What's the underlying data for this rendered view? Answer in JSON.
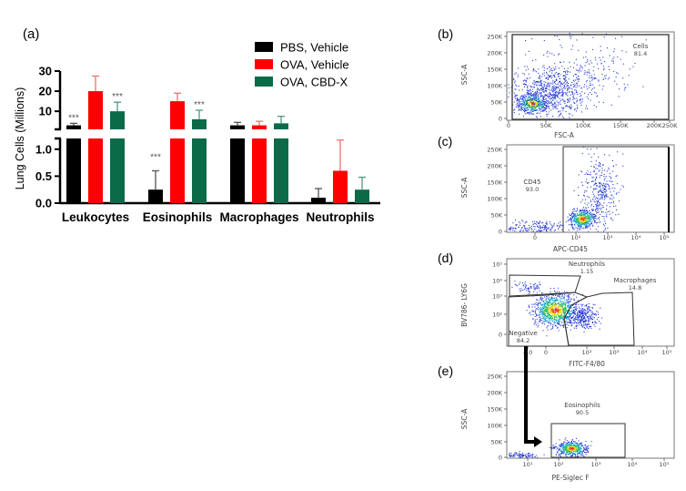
{
  "chart_data": [
    {
      "panel_label": "(a)",
      "type": "bar",
      "ylabel": "Lung Cells (Millions)",
      "y_axis_broken": true,
      "ylim_lower": [
        0,
        1.2
      ],
      "ylim_upper": [
        1,
        30
      ],
      "yticks_lower": [
        "0.0",
        "0.5",
        "1.0"
      ],
      "yticks_upper": [
        "10",
        "20",
        "30"
      ],
      "categories": [
        "Leukocytes",
        "Eosinophils",
        "Macrophages",
        "Neutrophils"
      ],
      "legend_position": "top-right",
      "series": [
        {
          "name": "PBS, Vehicle",
          "color": "#000000",
          "error_color": "#555555",
          "values": [
            3,
            0.25,
            3,
            0.1
          ],
          "error_upper": [
            4,
            0.6,
            4.5,
            0.27
          ],
          "significance": [
            "***",
            "***",
            "",
            ""
          ]
        },
        {
          "name": "OVA, Vehicle",
          "color": "#ff0000",
          "error_color": "#f07070",
          "values": [
            20,
            15,
            3,
            0.6
          ],
          "error_upper": [
            27.5,
            19,
            5,
            1.17
          ],
          "significance": [
            "",
            "",
            "",
            ""
          ]
        },
        {
          "name": "OVA, CBD-X",
          "color": "#0b6b48",
          "error_color": "#4f9a7e",
          "values": [
            10,
            6,
            4,
            0.25
          ],
          "error_upper": [
            14.5,
            10.5,
            7.5,
            0.48
          ],
          "significance": [
            "***",
            "***",
            "",
            ""
          ]
        }
      ]
    },
    {
      "panel_label": "(b)",
      "type": "scatter",
      "xlabel": "FSC-A",
      "ylabel": "SSC-A",
      "xticks": [
        "0",
        "50K",
        "100K",
        "150K",
        "200K",
        "250K"
      ],
      "yticks": [
        "250K",
        "200K",
        "150K",
        "100K",
        "50K",
        "0"
      ],
      "gates": [
        {
          "name": "Cells",
          "value": "81.4"
        }
      ]
    },
    {
      "panel_label": "(c)",
      "type": "scatter",
      "xlabel": "APC-CD45",
      "ylabel": "SSC-A",
      "xticks": [
        "0",
        "10²",
        "10³",
        "10⁴",
        "10⁵"
      ],
      "yticks": [
        "250K",
        "200K",
        "150K",
        "100K",
        "50K",
        "0"
      ],
      "gates": [
        {
          "name": "CD45",
          "value": "93.0"
        }
      ]
    },
    {
      "panel_label": "(d)",
      "type": "scatter",
      "xlabel": "FITC-F4/80",
      "ylabel": "BV786- LY6G",
      "xticks": [
        "-10",
        "0",
        "10²",
        "10³",
        "10⁴",
        "10⁵"
      ],
      "yticks": [
        "10⁵",
        "10⁴",
        "10³",
        "10²",
        "0"
      ],
      "gates": [
        {
          "name": "Neutrophils",
          "value": "1.15"
        },
        {
          "name": "Macrophages",
          "value": "14.8"
        },
        {
          "name": "Negative",
          "value": "84.2"
        }
      ]
    },
    {
      "panel_label": "(e)",
      "type": "scatter",
      "xlabel": "PE-Siglec F",
      "ylabel": "SSC-A",
      "xticks": [
        "10¹",
        "10²",
        "10³",
        "10⁴",
        "10⁵"
      ],
      "yticks": [
        "250K",
        "200K",
        "150K",
        "100K",
        "50K",
        "0"
      ],
      "gates": [
        {
          "name": "Eosinophils",
          "value": "90.5"
        }
      ]
    }
  ]
}
